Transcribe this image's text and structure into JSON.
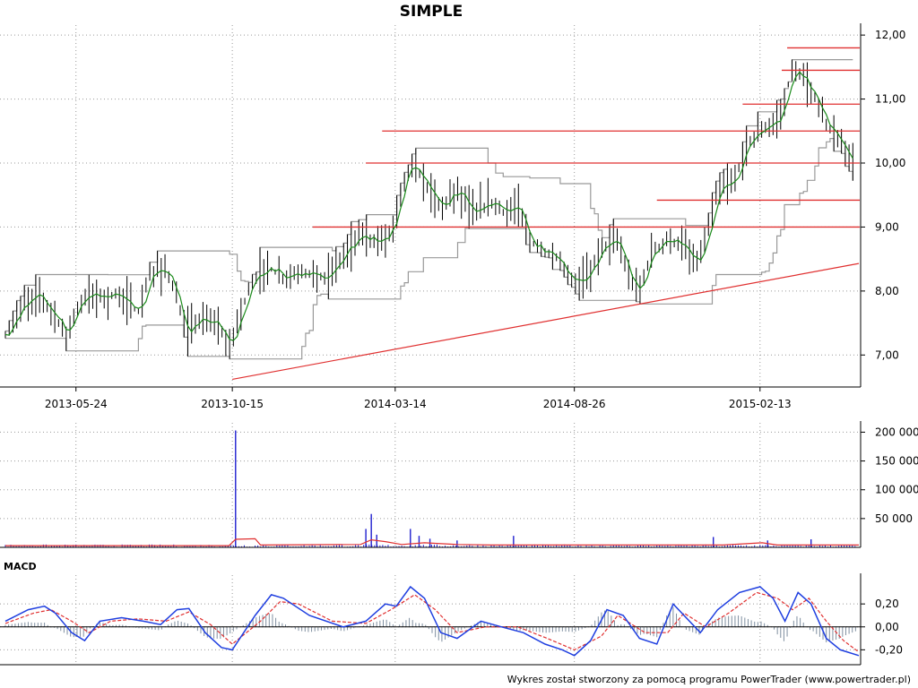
{
  "title": "SIMPLE",
  "footer": "Wykres został stworzony za pomocą programu PowerTrader (www.powertrader.pl)",
  "macd_label": "MACD",
  "colors": {
    "price_bars": "#000000",
    "moving_average": "#1a8a1a",
    "channel": "#999999",
    "resistance_lines": "#e03030",
    "trend_line": "#e03030",
    "volume_bars": "#1f1fcf",
    "volume_average": "#e03030",
    "macd_line": "#1f3fe0",
    "signal_line": "#e03030",
    "histogram": "#7f8fa0"
  },
  "chart_data": [
    {
      "type": "line",
      "panel": "price",
      "title": "SIMPLE",
      "x_tick_labels": [
        "2013-05-24",
        "2013-10-15",
        "2014-03-14",
        "2014-08-26",
        "2015-02-13"
      ],
      "y_tick_labels": [
        "7,00",
        "8,00",
        "9,00",
        "10,00",
        "11,00",
        "12,00"
      ],
      "y_ticks": [
        7,
        8,
        9,
        10,
        11,
        12
      ],
      "ylim": [
        6.5,
        12.1
      ],
      "xlim": [
        "2013-03-20",
        "2015-05-15"
      ],
      "grid": true,
      "close_series": [
        [
          "2013-03-20",
          7.3
        ],
        [
          "2013-04-05",
          7.8
        ],
        [
          "2013-04-20",
          7.95
        ],
        [
          "2013-05-05",
          7.6
        ],
        [
          "2013-05-15",
          7.3
        ],
        [
          "2013-05-24",
          7.7
        ],
        [
          "2013-06-05",
          7.95
        ],
        [
          "2013-06-20",
          7.9
        ],
        [
          "2013-07-05",
          7.95
        ],
        [
          "2013-07-20",
          7.65
        ],
        [
          "2013-08-01",
          8.3
        ],
        [
          "2013-08-15",
          8.35
        ],
        [
          "2013-08-25",
          7.9
        ],
        [
          "2013-09-01",
          7.35
        ],
        [
          "2013-09-15",
          7.55
        ],
        [
          "2013-10-01",
          7.5
        ],
        [
          "2013-10-12",
          7.1
        ],
        [
          "2013-10-20",
          7.55
        ],
        [
          "2013-11-01",
          8.1
        ],
        [
          "2013-11-15",
          8.4
        ],
        [
          "2013-12-01",
          8.2
        ],
        [
          "2013-12-20",
          8.3
        ],
        [
          "2014-01-10",
          8.2
        ],
        [
          "2014-01-25",
          8.55
        ],
        [
          "2014-02-10",
          8.9
        ],
        [
          "2014-02-25",
          8.75
        ],
        [
          "2014-03-10",
          8.9
        ],
        [
          "2014-03-20",
          9.6
        ],
        [
          "2014-03-28",
          10.0
        ],
        [
          "2014-04-10",
          9.7
        ],
        [
          "2014-04-25",
          9.3
        ],
        [
          "2014-05-10",
          9.6
        ],
        [
          "2014-05-25",
          9.2
        ],
        [
          "2014-06-10",
          9.4
        ],
        [
          "2014-06-25",
          9.2
        ],
        [
          "2014-07-05",
          9.35
        ],
        [
          "2014-07-15",
          8.8
        ],
        [
          "2014-07-30",
          8.6
        ],
        [
          "2014-08-10",
          8.5
        ],
        [
          "2014-08-26",
          8.1
        ],
        [
          "2014-09-10",
          8.3
        ],
        [
          "2014-09-20",
          8.7
        ],
        [
          "2014-10-05",
          8.8
        ],
        [
          "2014-10-15",
          8.2
        ],
        [
          "2014-10-25",
          8.0
        ],
        [
          "2014-11-05",
          8.6
        ],
        [
          "2014-11-20",
          8.8
        ],
        [
          "2014-12-05",
          8.7
        ],
        [
          "2014-12-15",
          8.4
        ],
        [
          "2014-12-25",
          8.8
        ],
        [
          "2015-01-05",
          9.6
        ],
        [
          "2015-01-20",
          9.7
        ],
        [
          "2015-02-01",
          10.3
        ],
        [
          "2015-02-13",
          10.5
        ],
        [
          "2015-02-25",
          10.6
        ],
        [
          "2015-03-05",
          10.8
        ],
        [
          "2015-03-15",
          11.5
        ],
        [
          "2015-03-25",
          11.3
        ],
        [
          "2015-04-05",
          11.0
        ],
        [
          "2015-04-15",
          10.6
        ],
        [
          "2015-04-25",
          10.4
        ],
        [
          "2015-05-05",
          10.1
        ],
        [
          "2015-05-12",
          10.0
        ]
      ],
      "horizontal_levels": [
        {
          "y": 11.8,
          "from": "2015-03-10"
        },
        {
          "y": 11.45,
          "from": "2015-03-05"
        },
        {
          "y": 10.92,
          "from": "2015-01-28"
        },
        {
          "y": 10.5,
          "from": "2014-03-02"
        },
        {
          "y": 10.0,
          "from": "2014-02-15"
        },
        {
          "y": 9.42,
          "from": "2014-11-10"
        },
        {
          "y": 9.0,
          "from": "2013-12-28"
        }
      ],
      "trend_line": [
        [
          "2013-10-15",
          6.62
        ],
        [
          "2015-05-15",
          8.43
        ]
      ]
    },
    {
      "type": "bar",
      "panel": "volume",
      "y_tick_labels": [
        "50 000",
        "100 000",
        "150 000",
        "200 000"
      ],
      "y_ticks": [
        50000,
        100000,
        150000,
        200000
      ],
      "ylim": [
        0,
        210000
      ],
      "grid": true,
      "spikes": [
        [
          "2013-10-18",
          203000
        ],
        [
          "2014-02-20",
          58000
        ],
        [
          "2014-02-15",
          32000
        ],
        [
          "2014-02-25",
          22000
        ],
        [
          "2014-03-28",
          32000
        ],
        [
          "2014-04-05",
          20000
        ],
        [
          "2014-04-15",
          15000
        ],
        [
          "2014-05-10",
          12000
        ],
        [
          "2014-07-01",
          20000
        ],
        [
          "2015-01-01",
          18000
        ],
        [
          "2015-02-20",
          12000
        ],
        [
          "2015-04-01",
          14000
        ]
      ],
      "volume_average": [
        [
          "2013-03-20",
          3000
        ],
        [
          "2013-10-12",
          3000
        ],
        [
          "2013-10-18",
          14000
        ],
        [
          "2013-11-05",
          15000
        ],
        [
          "2013-11-10",
          4000
        ],
        [
          "2014-02-10",
          5000
        ],
        [
          "2014-02-20",
          13000
        ],
        [
          "2014-03-05",
          10000
        ],
        [
          "2014-03-20",
          5000
        ],
        [
          "2014-04-10",
          8000
        ],
        [
          "2014-05-10",
          5000
        ],
        [
          "2014-06-10",
          4000
        ],
        [
          "2015-01-10",
          4000
        ],
        [
          "2015-02-15",
          8000
        ],
        [
          "2015-03-01",
          4000
        ],
        [
          "2015-05-15",
          4000
        ]
      ]
    },
    {
      "type": "line",
      "panel": "macd",
      "title": "MACD",
      "y_tick_labels": [
        "-0,20",
        "0,00",
        "0,20"
      ],
      "y_ticks": [
        -0.2,
        0,
        0.2
      ],
      "ylim": [
        -0.33,
        0.42
      ],
      "grid": true,
      "series": [
        {
          "name": "MACD",
          "values": [
            [
              "2013-03-20",
              0.05
            ],
            [
              "2013-04-10",
              0.15
            ],
            [
              "2013-04-25",
              0.18
            ],
            [
              "2013-05-05",
              0.12
            ],
            [
              "2013-05-20",
              -0.05
            ],
            [
              "2013-06-01",
              -0.12
            ],
            [
              "2013-06-15",
              0.05
            ],
            [
              "2013-07-05",
              0.08
            ],
            [
              "2013-07-25",
              0.05
            ],
            [
              "2013-08-10",
              0.02
            ],
            [
              "2013-08-25",
              0.15
            ],
            [
              "2013-09-05",
              0.16
            ],
            [
              "2013-09-20",
              -0.05
            ],
            [
              "2013-10-05",
              -0.18
            ],
            [
              "2013-10-15",
              -0.2
            ],
            [
              "2013-11-05",
              0.1
            ],
            [
              "2013-11-20",
              0.28
            ],
            [
              "2013-12-01",
              0.25
            ],
            [
              "2013-12-25",
              0.1
            ],
            [
              "2014-01-25",
              0.0
            ],
            [
              "2014-02-15",
              0.05
            ],
            [
              "2014-03-05",
              0.2
            ],
            [
              "2014-03-15",
              0.18
            ],
            [
              "2014-03-28",
              0.35
            ],
            [
              "2014-04-10",
              0.25
            ],
            [
              "2014-04-25",
              -0.05
            ],
            [
              "2014-05-10",
              -0.1
            ],
            [
              "2014-06-01",
              0.05
            ],
            [
              "2014-06-20",
              0.0
            ],
            [
              "2014-07-10",
              -0.05
            ],
            [
              "2014-07-30",
              -0.15
            ],
            [
              "2014-08-15",
              -0.2
            ],
            [
              "2014-08-26",
              -0.25
            ],
            [
              "2014-09-10",
              -0.12
            ],
            [
              "2014-09-25",
              0.15
            ],
            [
              "2014-10-10",
              0.1
            ],
            [
              "2014-10-25",
              -0.1
            ],
            [
              "2014-11-10",
              -0.15
            ],
            [
              "2014-11-25",
              0.2
            ],
            [
              "2014-12-05",
              0.1
            ],
            [
              "2014-12-20",
              -0.05
            ],
            [
              "2015-01-05",
              0.15
            ],
            [
              "2015-01-25",
              0.3
            ],
            [
              "2015-02-13",
              0.35
            ],
            [
              "2015-02-25",
              0.25
            ],
            [
              "2015-03-08",
              0.05
            ],
            [
              "2015-03-20",
              0.3
            ],
            [
              "2015-04-01",
              0.2
            ],
            [
              "2015-04-15",
              -0.1
            ],
            [
              "2015-04-28",
              -0.2
            ],
            [
              "2015-05-15",
              -0.25
            ]
          ]
        },
        {
          "name": "Signal",
          "values": [
            [
              "2013-03-20",
              0.03
            ],
            [
              "2013-04-15",
              0.12
            ],
            [
              "2013-05-01",
              0.15
            ],
            [
              "2013-05-20",
              0.05
            ],
            [
              "2013-06-05",
              -0.05
            ],
            [
              "2013-06-25",
              0.05
            ],
            [
              "2013-07-20",
              0.07
            ],
            [
              "2013-08-15",
              0.05
            ],
            [
              "2013-09-05",
              0.13
            ],
            [
              "2013-09-25",
              0.02
            ],
            [
              "2013-10-15",
              -0.15
            ],
            [
              "2013-11-10",
              0.05
            ],
            [
              "2013-11-28",
              0.22
            ],
            [
              "2013-12-15",
              0.2
            ],
            [
              "2014-01-15",
              0.05
            ],
            [
              "2014-02-15",
              0.03
            ],
            [
              "2014-03-10",
              0.15
            ],
            [
              "2014-04-01",
              0.28
            ],
            [
              "2014-04-20",
              0.15
            ],
            [
              "2014-05-10",
              -0.05
            ],
            [
              "2014-06-05",
              0.0
            ],
            [
              "2014-07-05",
              0.0
            ],
            [
              "2014-08-01",
              -0.1
            ],
            [
              "2014-08-26",
              -0.2
            ],
            [
              "2014-09-20",
              -0.08
            ],
            [
              "2014-10-05",
              0.1
            ],
            [
              "2014-10-30",
              -0.05
            ],
            [
              "2014-11-20",
              -0.05
            ],
            [
              "2014-12-05",
              0.12
            ],
            [
              "2014-12-25",
              0.0
            ],
            [
              "2015-01-15",
              0.12
            ],
            [
              "2015-02-10",
              0.3
            ],
            [
              "2015-03-01",
              0.25
            ],
            [
              "2015-03-15",
              0.15
            ],
            [
              "2015-03-30",
              0.25
            ],
            [
              "2015-04-15",
              0.05
            ],
            [
              "2015-05-01",
              -0.12
            ],
            [
              "2015-05-15",
              -0.22
            ]
          ]
        }
      ]
    }
  ]
}
